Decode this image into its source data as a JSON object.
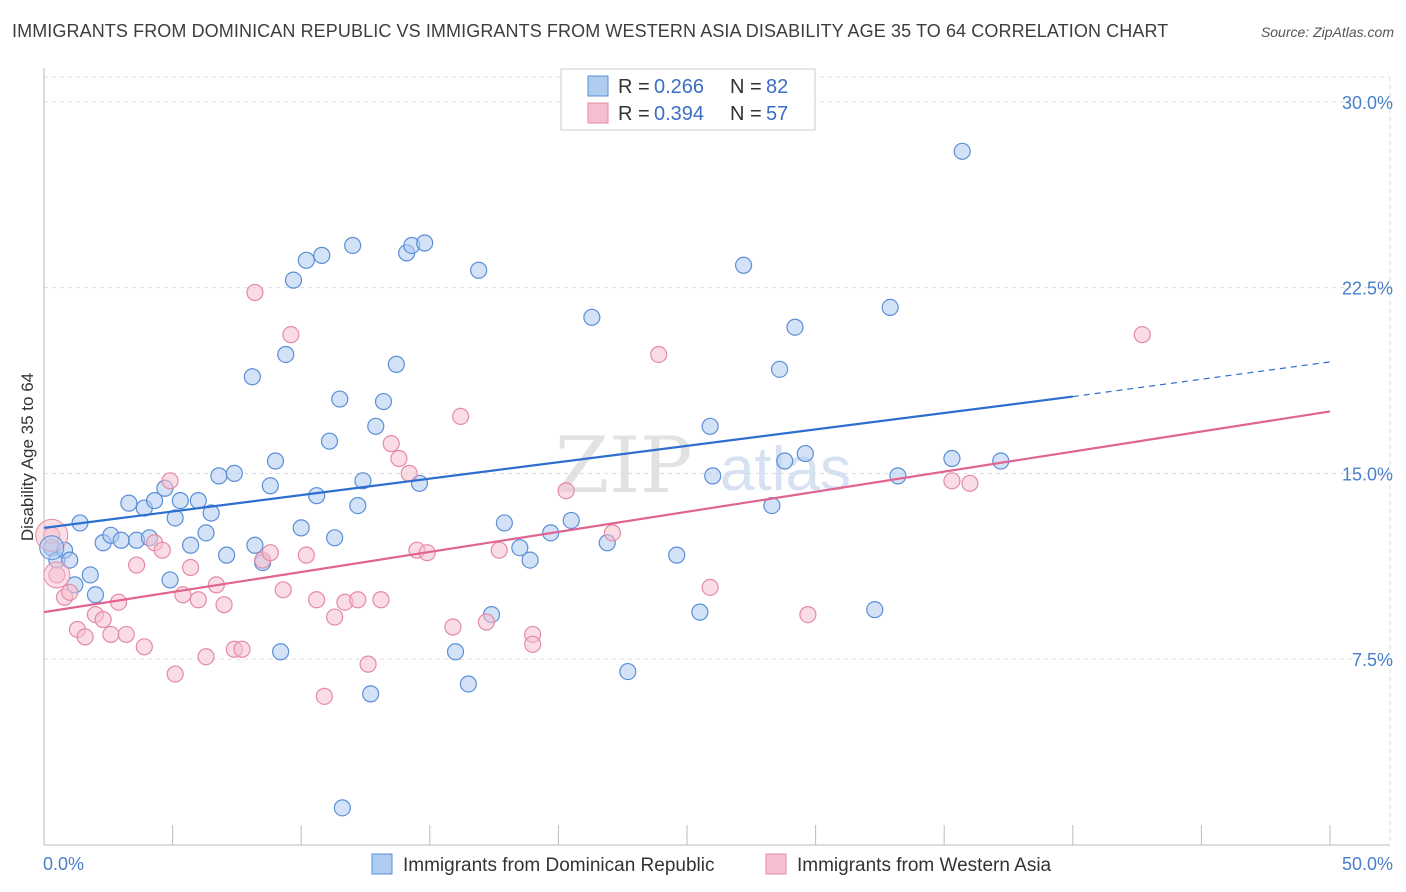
{
  "title": "IMMIGRANTS FROM DOMINICAN REPUBLIC VS IMMIGRANTS FROM WESTERN ASIA DISABILITY AGE 35 TO 64 CORRELATION CHART",
  "source": "Source: ZipAtlas.com",
  "watermark": {
    "part1": "ZIP",
    "part2": "atlas"
  },
  "legend_box": {
    "rows": [
      {
        "r_label": "R = ",
        "r_value": "0.266",
        "n_label": "N = ",
        "n_value": "82"
      },
      {
        "r_label": "R = ",
        "r_value": "0.394",
        "n_label": "N = ",
        "n_value": "57"
      }
    ]
  },
  "bottom_legend": [
    "Immigrants from Dominican Republic",
    "Immigrants from Western Asia"
  ],
  "colors": {
    "blue_fill": "#aecbf0",
    "blue_stroke": "#5b8fd6",
    "blue_line": "#2c6fce",
    "pink_fill": "#f6bfd0",
    "pink_stroke": "#e58aa6",
    "pink_line": "#e0648f",
    "grid": "#dddddd",
    "tick_text": "#4a7ecb"
  },
  "chart_data": {
    "type": "scatter",
    "title": "IMMIGRANTS FROM DOMINICAN REPUBLIC VS IMMIGRANTS FROM WESTERN ASIA DISABILITY AGE 35 TO 64 CORRELATION CHART",
    "xlabel": "",
    "ylabel": "Disability Age 35 to 64",
    "xlim": [
      0,
      50
    ],
    "ylim": [
      0,
      31
    ],
    "x_tick_labels": [
      "0.0%",
      "50.0%"
    ],
    "y_ticks": [
      7.5,
      15.0,
      22.5,
      30.0
    ],
    "y_tick_labels": [
      "7.5%",
      "15.0%",
      "22.5%",
      "30.0%"
    ],
    "grid": true,
    "legend_position": "top-center",
    "series": [
      {
        "name": "Immigrants from Dominican Republic",
        "color": "#5b8fd6",
        "trend": {
          "x0": 0,
          "y0": 12.8,
          "x1": 40,
          "y1": 18.1,
          "dash_to_x": 50,
          "dash_to_y": 19.5
        },
        "points": [
          [
            0.3,
            12.0
          ],
          [
            0.5,
            11.5
          ],
          [
            0.8,
            11.9
          ],
          [
            1.0,
            11.5
          ],
          [
            1.2,
            10.5
          ],
          [
            1.4,
            13.0
          ],
          [
            1.8,
            10.9
          ],
          [
            2.0,
            10.1
          ],
          [
            2.3,
            12.2
          ],
          [
            2.6,
            12.5
          ],
          [
            3.0,
            12.3
          ],
          [
            3.3,
            13.8
          ],
          [
            3.6,
            12.3
          ],
          [
            3.9,
            13.6
          ],
          [
            4.1,
            12.4
          ],
          [
            4.3,
            13.9
          ],
          [
            4.7,
            14.4
          ],
          [
            4.9,
            10.7
          ],
          [
            5.1,
            13.2
          ],
          [
            5.3,
            13.9
          ],
          [
            5.7,
            12.1
          ],
          [
            6.0,
            13.9
          ],
          [
            6.3,
            12.6
          ],
          [
            6.5,
            13.4
          ],
          [
            6.8,
            14.9
          ],
          [
            7.1,
            11.7
          ],
          [
            7.4,
            15.0
          ],
          [
            8.1,
            18.9
          ],
          [
            8.2,
            12.1
          ],
          [
            8.5,
            11.4
          ],
          [
            8.8,
            14.5
          ],
          [
            9.0,
            15.5
          ],
          [
            9.2,
            7.8
          ],
          [
            9.4,
            19.8
          ],
          [
            9.7,
            22.8
          ],
          [
            10.0,
            12.8
          ],
          [
            10.2,
            23.6
          ],
          [
            10.6,
            14.1
          ],
          [
            10.8,
            23.8
          ],
          [
            11.1,
            16.3
          ],
          [
            11.3,
            12.4
          ],
          [
            11.5,
            18.0
          ],
          [
            11.6,
            1.5
          ],
          [
            12.0,
            24.2
          ],
          [
            12.2,
            13.7
          ],
          [
            12.4,
            14.7
          ],
          [
            12.7,
            6.1
          ],
          [
            12.9,
            16.9
          ],
          [
            13.2,
            17.9
          ],
          [
            13.7,
            19.4
          ],
          [
            14.1,
            23.9
          ],
          [
            14.3,
            24.2
          ],
          [
            14.6,
            14.6
          ],
          [
            14.8,
            24.3
          ],
          [
            16.0,
            7.8
          ],
          [
            16.5,
            6.5
          ],
          [
            16.9,
            23.2
          ],
          [
            17.4,
            9.3
          ],
          [
            17.9,
            13.0
          ],
          [
            18.5,
            12.0
          ],
          [
            18.9,
            11.5
          ],
          [
            19.7,
            12.6
          ],
          [
            20.5,
            13.1
          ],
          [
            21.3,
            21.3
          ],
          [
            21.9,
            12.2
          ],
          [
            22.7,
            7.0
          ],
          [
            24.6,
            11.7
          ],
          [
            25.5,
            9.4
          ],
          [
            25.9,
            16.9
          ],
          [
            26.0,
            14.9
          ],
          [
            27.2,
            23.4
          ],
          [
            28.3,
            13.7
          ],
          [
            28.8,
            15.5
          ],
          [
            28.6,
            19.2
          ],
          [
            29.2,
            20.9
          ],
          [
            29.6,
            15.8
          ],
          [
            32.3,
            9.5
          ],
          [
            32.9,
            21.7
          ],
          [
            33.2,
            14.9
          ],
          [
            35.3,
            15.6
          ],
          [
            35.7,
            28.0
          ],
          [
            37.2,
            15.5
          ]
        ]
      },
      {
        "name": "Immigrants from Western Asia",
        "color": "#e58aa6",
        "trend": {
          "x0": 0,
          "y0": 9.4,
          "x1": 50,
          "y1": 17.5
        },
        "points": [
          [
            0.3,
            12.5
          ],
          [
            0.5,
            10.9
          ],
          [
            0.8,
            10.0
          ],
          [
            1.0,
            10.2
          ],
          [
            1.3,
            8.7
          ],
          [
            1.6,
            8.4
          ],
          [
            2.0,
            9.3
          ],
          [
            2.3,
            9.1
          ],
          [
            2.6,
            8.5
          ],
          [
            2.9,
            9.8
          ],
          [
            3.2,
            8.5
          ],
          [
            3.6,
            11.3
          ],
          [
            3.9,
            8.0
          ],
          [
            4.3,
            12.2
          ],
          [
            4.6,
            11.9
          ],
          [
            4.9,
            14.7
          ],
          [
            5.1,
            6.9
          ],
          [
            5.4,
            10.1
          ],
          [
            5.7,
            11.2
          ],
          [
            6.0,
            9.9
          ],
          [
            6.3,
            7.6
          ],
          [
            6.7,
            10.5
          ],
          [
            7.0,
            9.7
          ],
          [
            7.4,
            7.9
          ],
          [
            7.7,
            7.9
          ],
          [
            8.2,
            22.3
          ],
          [
            8.5,
            11.5
          ],
          [
            8.8,
            11.8
          ],
          [
            9.3,
            10.3
          ],
          [
            9.6,
            20.6
          ],
          [
            10.2,
            11.7
          ],
          [
            10.6,
            9.9
          ],
          [
            10.9,
            6.0
          ],
          [
            11.3,
            9.2
          ],
          [
            11.7,
            9.8
          ],
          [
            12.2,
            9.9
          ],
          [
            12.6,
            7.3
          ],
          [
            13.1,
            9.9
          ],
          [
            13.5,
            16.2
          ],
          [
            13.8,
            15.6
          ],
          [
            14.2,
            15.0
          ],
          [
            14.5,
            11.9
          ],
          [
            14.9,
            11.8
          ],
          [
            15.9,
            8.8
          ],
          [
            16.2,
            17.3
          ],
          [
            17.2,
            9.0
          ],
          [
            17.7,
            11.9
          ],
          [
            19.0,
            8.5
          ],
          [
            19.0,
            8.1
          ],
          [
            20.3,
            14.3
          ],
          [
            22.1,
            12.6
          ],
          [
            23.9,
            19.8
          ],
          [
            25.9,
            10.4
          ],
          [
            29.7,
            9.3
          ],
          [
            35.3,
            14.7
          ],
          [
            36.0,
            14.6
          ],
          [
            42.7,
            20.6
          ]
        ]
      }
    ]
  }
}
